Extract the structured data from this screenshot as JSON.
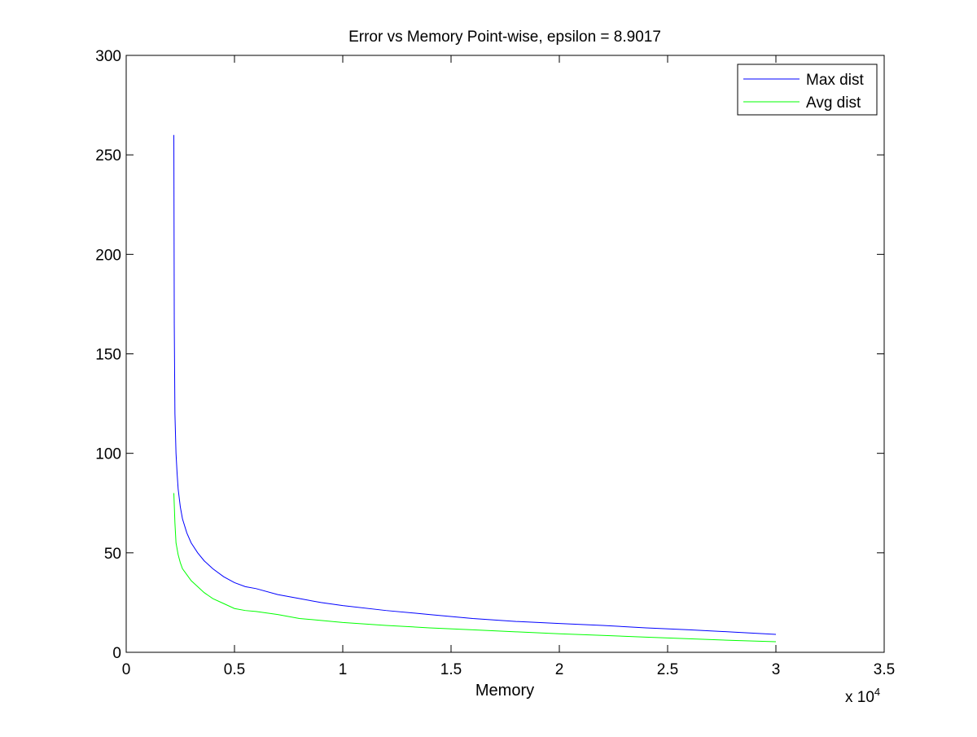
{
  "chart_data": {
    "type": "line",
    "title": "Error vs Memory Point-wise, epsilon = 8.9017",
    "xlabel": "Memory",
    "ylabel": "",
    "xlim": [
      0,
      35000
    ],
    "ylim": [
      0,
      300
    ],
    "x_multiplier_label": "x 10",
    "x_multiplier_exponent": "4",
    "x_ticks": [
      0,
      5000,
      10000,
      15000,
      20000,
      25000,
      30000,
      35000
    ],
    "x_tick_labels": [
      "0",
      "0.5",
      "1",
      "1.5",
      "2",
      "2.5",
      "3",
      "3.5"
    ],
    "y_ticks": [
      0,
      50,
      100,
      150,
      200,
      250,
      300
    ],
    "y_tick_labels": [
      "0",
      "50",
      "100",
      "150",
      "200",
      "250",
      "300"
    ],
    "grid": false,
    "legend_position": "top-right",
    "series": [
      {
        "name": "Max dist",
        "color": "#0000ff",
        "x": [
          2200,
          2220,
          2250,
          2300,
          2350,
          2400,
          2500,
          2600,
          2800,
          3000,
          3300,
          3600,
          4000,
          4500,
          5000,
          5500,
          6000,
          7000,
          8000,
          9000,
          10000,
          12000,
          14000,
          16000,
          18000,
          20000,
          22000,
          24000,
          26000,
          28000,
          30000
        ],
        "y": [
          260,
          165,
          120,
          100,
          90,
          82,
          73,
          67,
          60,
          55,
          50,
          46,
          42,
          38,
          35,
          33,
          32,
          29,
          27,
          25,
          23.5,
          21,
          19,
          17,
          15.5,
          14.5,
          13.5,
          12.3,
          11.3,
          10.2,
          9
        ]
      },
      {
        "name": "Avg dist",
        "color": "#00ff00",
        "x": [
          2200,
          2250,
          2300,
          2400,
          2500,
          2600,
          2800,
          3000,
          3300,
          3600,
          4000,
          4500,
          5000,
          5500,
          6000,
          7000,
          8000,
          9000,
          10000,
          12000,
          14000,
          16000,
          18000,
          20000,
          22000,
          24000,
          26000,
          28000,
          30000
        ],
        "y": [
          80,
          65,
          55,
          49,
          45,
          42,
          39,
          36,
          33,
          30,
          27,
          24.5,
          22,
          21,
          20.5,
          19,
          17,
          16,
          15,
          13.5,
          12.3,
          11.3,
          10.3,
          9.3,
          8.5,
          7.6,
          6.8,
          6,
          5.3
        ]
      }
    ]
  }
}
